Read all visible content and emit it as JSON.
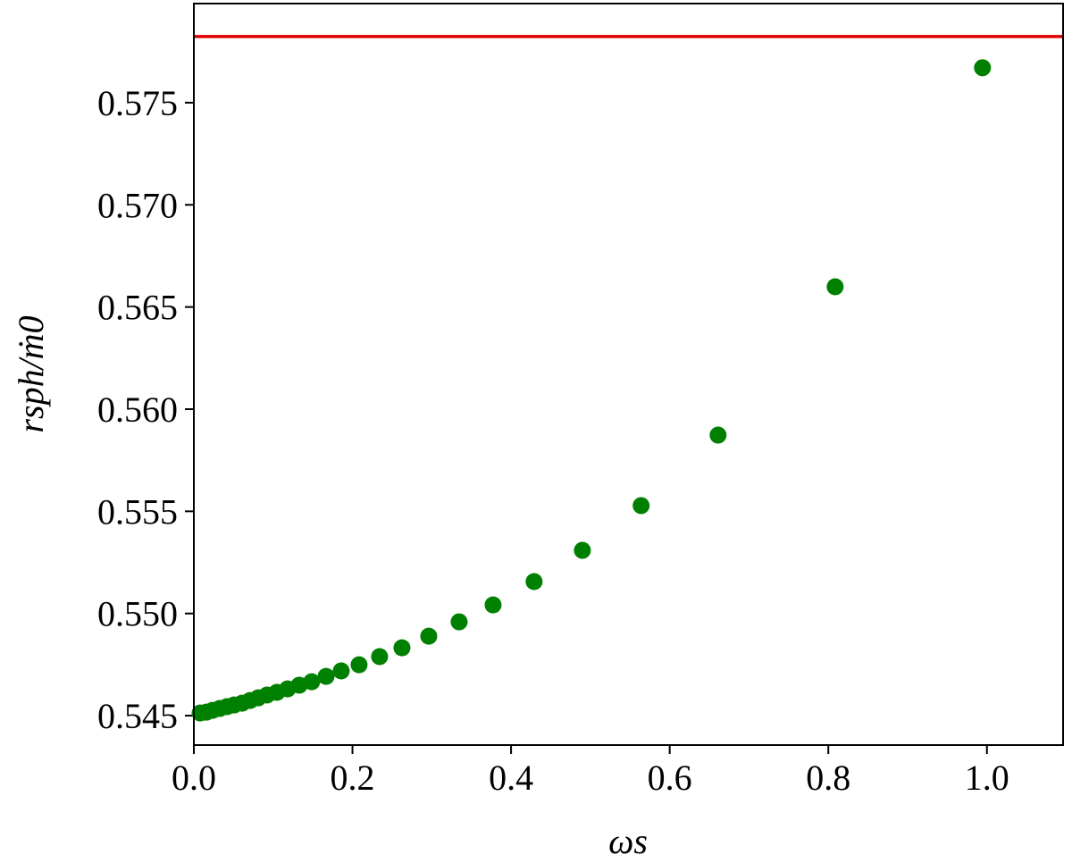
{
  "chart_data": {
    "type": "scatter",
    "xlabel": "ωs",
    "ylabel": "rsph/ṁ0",
    "series": [
      {
        "color": "#008000",
        "x": [
          0.0079,
          0.0158,
          0.0236,
          0.0327,
          0.0417,
          0.0507,
          0.0608,
          0.0709,
          0.0811,
          0.0923,
          0.1047,
          0.1182,
          0.1329,
          0.1486,
          0.1667,
          0.1858,
          0.2083,
          0.2342,
          0.2624,
          0.2962,
          0.3345,
          0.3773,
          0.429,
          0.4899,
          0.564,
          0.661,
          0.8086,
          0.9944
        ],
        "values": [
          0.54513,
          0.54517,
          0.54526,
          0.54535,
          0.54544,
          0.54552,
          0.54561,
          0.54574,
          0.54587,
          0.54601,
          0.54614,
          0.54631,
          0.54649,
          0.54666,
          0.54692,
          0.54719,
          0.54749,
          0.54789,
          0.54832,
          0.54889,
          0.54959,
          0.55042,
          0.55156,
          0.55309,
          0.55528,
          0.55873,
          0.56599,
          0.57671
        ]
      }
    ],
    "hline": {
      "value": 0.57824,
      "color": "#e00000"
    },
    "xlim": [
      0,
      1.096
    ],
    "ylim": [
      0.54356,
      0.57985
    ],
    "xticks": [
      {
        "value": 0,
        "label": "0.0"
      },
      0.2,
      0.4,
      0.6,
      0.8,
      {
        "value": 1,
        "label": "1.0"
      }
    ],
    "yticks": [
      0.545,
      {
        "value": 0.55,
        "label": "0.550"
      },
      0.555,
      {
        "value": 0.56,
        "label": "0.560"
      },
      0.565,
      {
        "value": 0.57,
        "label": "0.570"
      },
      0.575
    ]
  }
}
